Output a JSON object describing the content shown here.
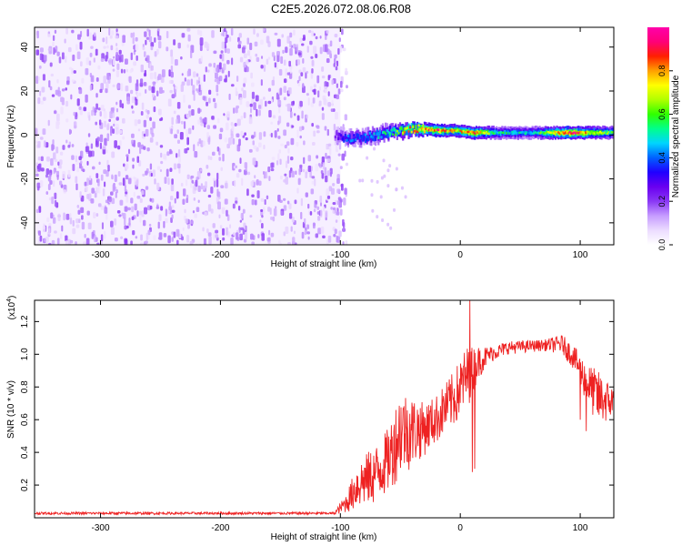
{
  "title": "C2E5.2026.072.08.06.R08",
  "chart_data": [
    {
      "type": "heatmap",
      "name": "spectrogram",
      "xlabel": "Height of straight line (km)",
      "ylabel": "Frequency (Hz)",
      "xlim": [
        -355,
        128
      ],
      "ylim": [
        -50,
        49
      ],
      "xticks": [
        -300,
        -200,
        -100,
        0,
        100
      ],
      "yticks": [
        -40,
        -20,
        0,
        20,
        40
      ],
      "colorbar": {
        "label": "Normalized spectral amplitude",
        "range": [
          0.0,
          1.0
        ],
        "ticks": [
          0.0,
          0.2,
          0.4,
          0.6,
          0.8
        ],
        "tick_labels": [
          "0.0",
          "0.2",
          "0.4",
          "0.6",
          "0.8"
        ],
        "colors": [
          "#ffffff",
          "#ecdcff",
          "#c69cff",
          "#8a38f5",
          "#6a00f0",
          "#2000ff",
          "#0060ff",
          "#00d4ff",
          "#00ff8c",
          "#30ff00",
          "#b0ff00",
          "#ffff00",
          "#ffa000",
          "#ff2000",
          "#ff0078",
          "#ff00aa"
        ]
      },
      "noise_region": {
        "x_range": [
          -355,
          -100
        ],
        "freq_range": [
          -50,
          49
        ],
        "amplitude_range": [
          0.05,
          0.2
        ]
      },
      "signal_line": {
        "points": [
          {
            "x": -105,
            "freq": 0,
            "amp": 0.25
          },
          {
            "x": -95,
            "freq": -2,
            "amp": 0.4
          },
          {
            "x": -80,
            "freq": -1,
            "amp": 0.45
          },
          {
            "x": -60,
            "freq": 1,
            "amp": 0.55
          },
          {
            "x": -45,
            "freq": 2,
            "amp": 0.8
          },
          {
            "x": -35,
            "freq": 3,
            "amp": 0.85
          },
          {
            "x": -20,
            "freq": 2,
            "amp": 0.9
          },
          {
            "x": -5,
            "freq": 2,
            "amp": 0.75
          },
          {
            "x": 10,
            "freq": 1,
            "amp": 0.9
          },
          {
            "x": 30,
            "freq": 1,
            "amp": 0.55
          },
          {
            "x": 60,
            "freq": 1,
            "amp": 0.5
          },
          {
            "x": 90,
            "freq": 1,
            "amp": 0.95
          },
          {
            "x": 128,
            "freq": 1,
            "amp": 0.6
          }
        ]
      }
    },
    {
      "type": "line",
      "name": "snr",
      "xlabel": "Height of straight line (km)",
      "ylabel": "SNR (10 * v/v)",
      "multiplier_label": "(x10",
      "multiplier_exp": "4",
      "multiplier_close": ")",
      "xlim": [
        -355,
        128
      ],
      "ylim": [
        0.0,
        1.33
      ],
      "xticks": [
        -300,
        -200,
        -100,
        0,
        100
      ],
      "yticks": [
        0.2,
        0.4,
        0.6,
        0.8,
        1.0,
        1.2
      ],
      "ytick_labels": [
        "0.2",
        "0.4",
        "0.6",
        "0.8",
        "1.0",
        "1.2"
      ],
      "line_color": "#ee2222",
      "envelope": [
        {
          "x": -355,
          "low": 0.02,
          "high": 0.035
        },
        {
          "x": -105,
          "low": 0.02,
          "high": 0.035
        },
        {
          "x": -95,
          "low": 0.03,
          "high": 0.15
        },
        {
          "x": -85,
          "low": 0.05,
          "high": 0.35
        },
        {
          "x": -70,
          "low": 0.08,
          "high": 0.45
        },
        {
          "x": -60,
          "low": 0.15,
          "high": 0.55
        },
        {
          "x": -50,
          "low": 0.25,
          "high": 0.8
        },
        {
          "x": -40,
          "low": 0.3,
          "high": 0.75
        },
        {
          "x": -30,
          "low": 0.38,
          "high": 0.7
        },
        {
          "x": -20,
          "low": 0.45,
          "high": 0.75
        },
        {
          "x": -5,
          "low": 0.55,
          "high": 0.9
        },
        {
          "x": 5,
          "low": 0.65,
          "high": 1.05
        },
        {
          "x": 15,
          "low": 0.85,
          "high": 1.05
        },
        {
          "x": 25,
          "low": 0.95,
          "high": 1.05
        },
        {
          "x": 40,
          "low": 1.0,
          "high": 1.08
        },
        {
          "x": 70,
          "low": 1.02,
          "high": 1.09
        },
        {
          "x": 85,
          "low": 1.0,
          "high": 1.12
        },
        {
          "x": 95,
          "low": 0.9,
          "high": 1.05
        },
        {
          "x": 105,
          "low": 0.7,
          "high": 0.95
        },
        {
          "x": 115,
          "low": 0.55,
          "high": 0.9
        },
        {
          "x": 128,
          "low": 0.6,
          "high": 0.8
        }
      ],
      "spikes": [
        {
          "x": 8,
          "value": 1.33
        },
        {
          "x": 10,
          "value": 0.28
        },
        {
          "x": 12,
          "value": 0.3
        },
        {
          "x": 100,
          "value": 0.6
        },
        {
          "x": 105,
          "value": 0.53
        }
      ]
    }
  ]
}
